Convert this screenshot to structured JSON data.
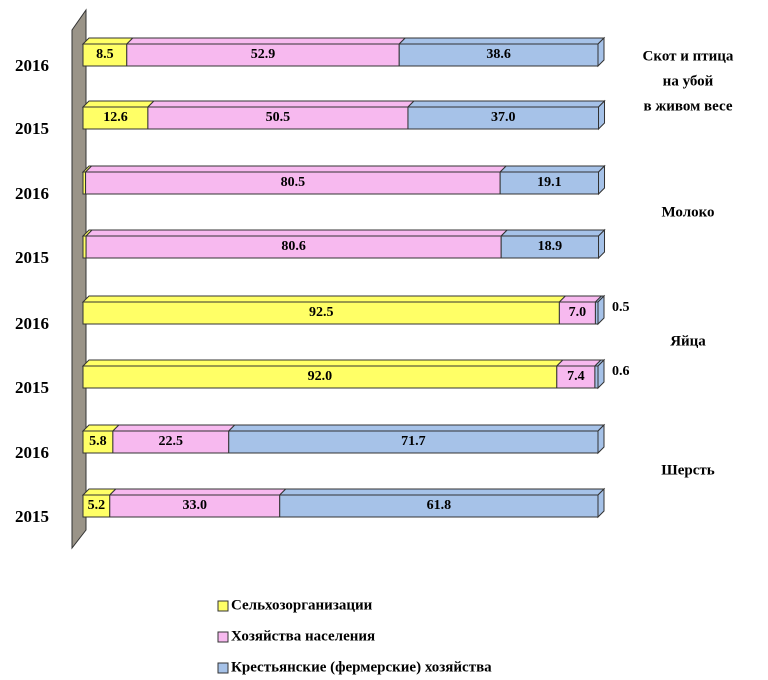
{
  "chart_data": {
    "type": "bar",
    "orientation": "horizontal",
    "stacked": true,
    "categories": [
      "2016",
      "2015",
      "2016",
      "2015",
      "2016",
      "2015",
      "2016",
      "2015"
    ],
    "group_labels": [
      [
        "Скот  и птица",
        "на убой",
        "в живом весе"
      ],
      [
        "Молоко"
      ],
      [
        "Яйца"
      ],
      [
        "Шерсть"
      ]
    ],
    "xlim": [
      0,
      100
    ],
    "series": [
      {
        "name": "Сельхозорганизации",
        "color": "#ffff66",
        "values": [
          8.5,
          12.6,
          0.5,
          0.6,
          92.5,
          92.0,
          5.8,
          5.2
        ],
        "value_labels": [
          "8.5",
          "12.6",
          "0.5",
          "0.6",
          "92.5",
          "92.0",
          "5.8",
          "5.2"
        ]
      },
      {
        "name": "Хозяйства населения",
        "color": "#f7b9ef",
        "values": [
          52.9,
          50.5,
          80.5,
          80.6,
          7.0,
          7.4,
          22.5,
          33.0
        ],
        "value_labels": [
          "52.9",
          "50.5",
          "80.5",
          "80.6",
          "7.0",
          "7.4",
          "22.5",
          "33.0"
        ]
      },
      {
        "name": "Крестьянские (фермерские)  хозяйства",
        "color": "#a6c2e8",
        "values": [
          38.6,
          37.0,
          19.1,
          18.9,
          0.5,
          0.6,
          71.7,
          61.8
        ],
        "value_labels": [
          "38.6",
          "37.0",
          "19.1",
          "18.9",
          "0.5",
          "0.6",
          "71.7",
          "61.8"
        ]
      }
    ]
  }
}
